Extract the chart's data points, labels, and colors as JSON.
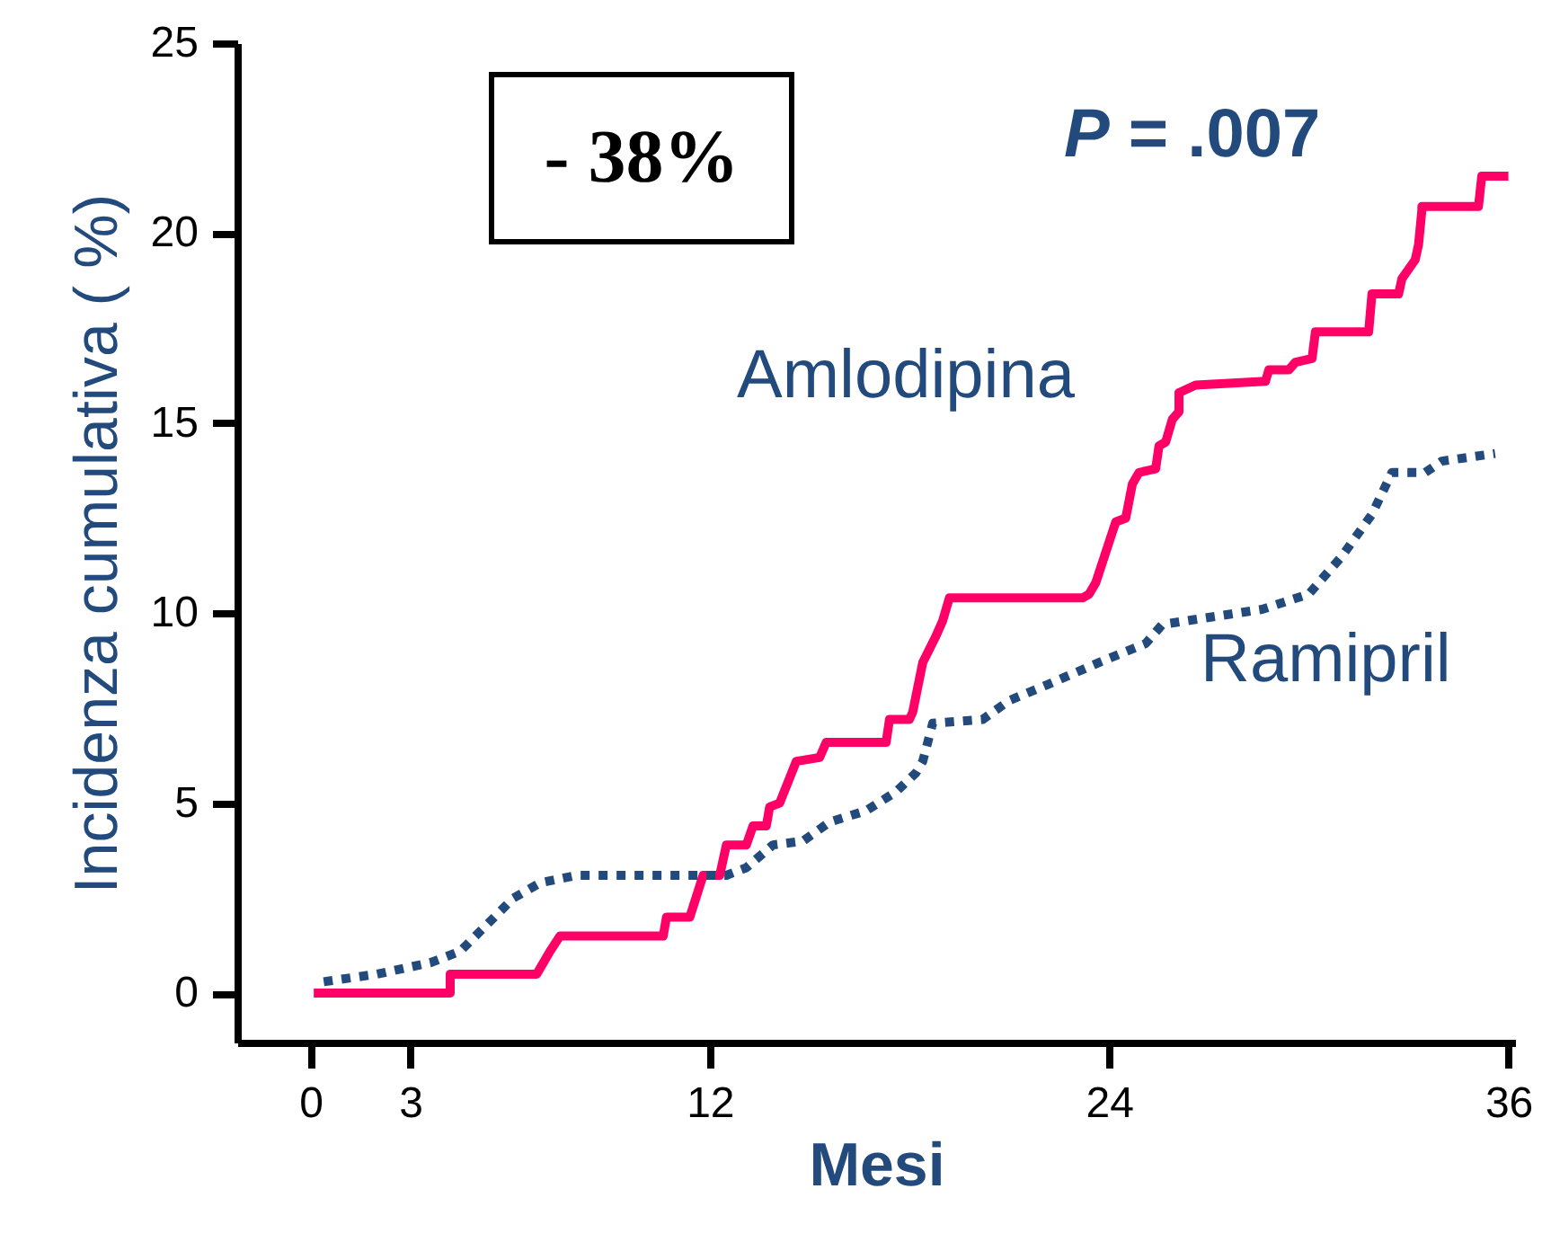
{
  "chart_data": {
    "type": "line",
    "xlabel": "Mesi",
    "ylabel": "Incidenza cumulativa ( %)",
    "xlim": [
      -2.2,
      36.2
    ],
    "ylim": [
      -1.3,
      25
    ],
    "xticks": [
      0,
      3,
      12,
      24,
      36
    ],
    "yticks": [
      0,
      5,
      10,
      15,
      20,
      25
    ],
    "grid": false,
    "marker": "none",
    "annotations": [
      "- 38%",
      "P = .007"
    ],
    "series": [
      {
        "name": "Amlodipina",
        "color": "#ff0066",
        "line_style": "solid",
        "x": [
          0.1,
          4.2,
          4.2,
          6.8,
          7.2,
          7.5,
          10.6,
          10.7,
          11.4,
          11.8,
          12.3,
          12.5,
          13.1,
          13.3,
          13.7,
          13.8,
          14.1,
          14.6,
          15.3,
          15.5,
          17.3,
          17.4,
          18.0,
          18.1,
          18.4,
          18.8,
          19.0,
          19.2,
          23.2,
          23.4,
          23.6,
          24.2,
          24.5,
          24.7,
          24.9,
          25.4,
          25.5,
          25.7,
          25.9,
          26.1,
          26.1,
          26.6,
          28.7,
          28.8,
          29.4,
          29.5,
          29.6,
          30.1,
          30.2,
          31.8,
          31.9,
          32.7,
          32.8,
          33.2,
          33.3,
          33.4,
          33.4,
          35.1,
          35.2,
          36.0
        ],
        "values": [
          0,
          0,
          0.5,
          0.5,
          1.1,
          1.5,
          1.5,
          2.0,
          2.0,
          3.1,
          3.1,
          3.9,
          3.9,
          4.4,
          4.4,
          4.9,
          5.0,
          6.1,
          6.2,
          6.6,
          6.6,
          7.2,
          7.2,
          7.4,
          8.7,
          9.4,
          9.8,
          10.4,
          10.4,
          10.5,
          10.8,
          12.4,
          12.5,
          13.4,
          13.7,
          13.8,
          14.4,
          14.5,
          15.1,
          15.3,
          15.8,
          16.0,
          16.1,
          16.4,
          16.4,
          16.5,
          16.6,
          16.7,
          17.4,
          17.4,
          18.4,
          18.4,
          18.8,
          19.3,
          19.7,
          20.6,
          20.7,
          20.7,
          21.5,
          21.5
        ]
      },
      {
        "name": "Ramipril",
        "color": "#234a7d",
        "line_style": "dotted",
        "x": [
          0.4,
          2.0,
          3.6,
          4.5,
          5.3,
          6.1,
          6.9,
          8.0,
          12.5,
          13.1,
          13.9,
          14.8,
          15.6,
          16.7,
          17.6,
          18.2,
          18.4,
          18.7,
          20.2,
          21.0,
          22.1,
          23.7,
          25.1,
          25.6,
          28.6,
          30.0,
          31.0,
          31.9,
          32.5,
          33.5,
          34.0,
          35.6
        ],
        "values": [
          0.3,
          0.5,
          0.8,
          1.1,
          1.8,
          2.5,
          2.9,
          3.1,
          3.1,
          3.3,
          3.9,
          4.0,
          4.5,
          4.8,
          5.3,
          5.8,
          6.1,
          7.1,
          7.2,
          7.7,
          8.1,
          8.7,
          9.2,
          9.7,
          10.1,
          10.5,
          11.5,
          12.6,
          13.7,
          13.7,
          14.0,
          14.2
        ]
      }
    ]
  }
}
